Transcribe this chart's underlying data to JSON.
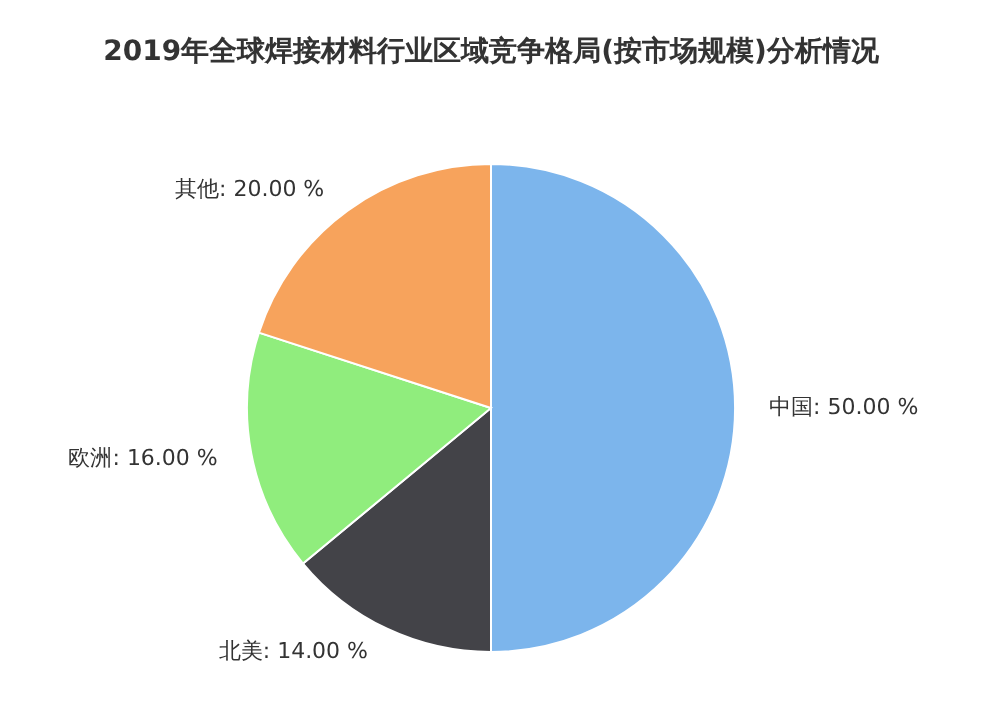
{
  "chart_data": {
    "type": "pie",
    "title": "2019年全球焊接材料行业区域竞争格局(按市场规模)分析情况",
    "categories": [
      "中国",
      "北美",
      "欧洲",
      "其他"
    ],
    "values": [
      50,
      14,
      16,
      20
    ],
    "value_labels": [
      "50.00 %",
      "14.00 %",
      "16.00 %",
      "20.00 %"
    ],
    "colors": [
      "#7cb5ec",
      "#434348",
      "#90ed7d",
      "#f7a35c"
    ]
  }
}
